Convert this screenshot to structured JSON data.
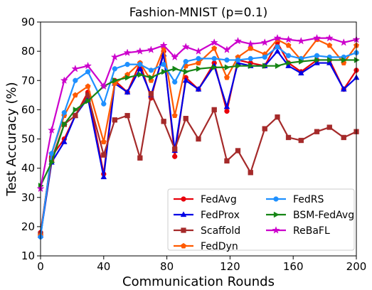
{
  "chart_data": {
    "type": "line",
    "title": "Fashion-MNIST (p=0.1)",
    "xlabel": "Communication Rounds",
    "ylabel": "Test Accuracy (%)",
    "xlim": [
      0,
      200
    ],
    "ylim": [
      10,
      90
    ],
    "xticks": [
      0,
      40,
      80,
      120,
      160,
      200
    ],
    "yticks": [
      10,
      20,
      30,
      40,
      50,
      60,
      70,
      80,
      90
    ],
    "grid": false,
    "legend_position": "lower-right",
    "x": [
      0,
      7,
      15,
      22,
      30,
      40,
      47,
      55,
      63,
      70,
      78,
      85,
      92,
      100,
      110,
      118,
      125,
      133,
      142,
      150,
      157,
      165,
      175,
      183,
      192,
      200
    ],
    "series": [
      {
        "name": "FedAvg",
        "color": "#e8000b",
        "marker": "circle",
        "values": [
          18,
          44,
          50,
          58,
          66,
          38,
          70,
          66,
          76,
          64,
          80,
          44,
          71,
          67,
          76,
          59.5,
          77,
          76,
          75,
          83,
          76,
          73,
          77,
          77,
          67,
          73.5
        ]
      },
      {
        "name": "FedProx",
        "color": "#0000e6",
        "marker": "triangle",
        "values": [
          17,
          42,
          49,
          58,
          64,
          37,
          69,
          66,
          74,
          65,
          79,
          46,
          70,
          67,
          75,
          61,
          76,
          75,
          75,
          80,
          75,
          72.5,
          76,
          76,
          67,
          71
        ]
      },
      {
        "name": "Scaffold",
        "color": "#a52a2a",
        "marker": "square",
        "values": [
          17.5,
          43,
          55,
          58,
          65,
          44.5,
          56.5,
          58,
          43.5,
          65.5,
          56,
          46.5,
          57,
          50,
          60,
          42.5,
          46,
          38.5,
          53.5,
          57.5,
          50.5,
          49.5,
          52.5,
          54,
          50.5,
          52.5
        ]
      },
      {
        "name": "FedDyn",
        "color": "#ff5a00",
        "marker": "pentagon",
        "values": [
          17,
          45,
          58,
          65,
          68,
          49,
          69,
          72,
          76,
          70,
          81,
          58,
          75,
          76,
          81,
          71,
          78,
          81,
          79,
          84,
          82,
          77,
          84,
          82,
          76,
          82
        ]
      },
      {
        "name": "FedRS",
        "color": "#1e90ff",
        "marker": "circle",
        "values": [
          16.5,
          45,
          59,
          70,
          73,
          62,
          74,
          75.5,
          75.5,
          73.5,
          75.5,
          69.5,
          76.5,
          77.5,
          77.5,
          77,
          77,
          77.5,
          78,
          81.5,
          78.5,
          77.5,
          78.5,
          78,
          78,
          79.5
        ]
      },
      {
        "name": "BSM-FedAvg",
        "color": "#158515",
        "marker": "triangle-right",
        "values": [
          34,
          42,
          55,
          60,
          63,
          68,
          70,
          71,
          72,
          71,
          73,
          74,
          73,
          74,
          74.5,
          74.5,
          75,
          75,
          75,
          75,
          76,
          76.5,
          77,
          77,
          77,
          77
        ]
      },
      {
        "name": "ReBaFL",
        "color": "#cc00cc",
        "marker": "star",
        "values": [
          33,
          53,
          70,
          74,
          75,
          68,
          78,
          79.5,
          80,
          80.5,
          82,
          78,
          81.5,
          80,
          83,
          80.5,
          83.5,
          82.5,
          83,
          84.5,
          84,
          83.5,
          84.5,
          84.5,
          83,
          84
        ]
      }
    ]
  }
}
